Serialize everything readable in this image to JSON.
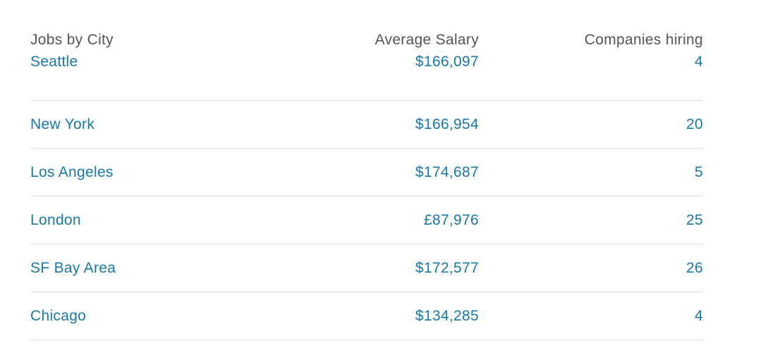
{
  "table": {
    "headers": {
      "city": "Jobs by City",
      "salary": "Average Salary",
      "companies": "Companies hiring"
    },
    "rows": [
      {
        "city": "Seattle",
        "salary": "$166,097",
        "companies": "4"
      },
      {
        "city": "New York",
        "salary": "$166,954",
        "companies": "20"
      },
      {
        "city": "Los Angeles",
        "salary": "$174,687",
        "companies": "5"
      },
      {
        "city": "London",
        "salary": "£87,976",
        "companies": "25"
      },
      {
        "city": "SF Bay Area",
        "salary": "$172,577",
        "companies": "26"
      },
      {
        "city": "Chicago",
        "salary": "$134,285",
        "companies": "4"
      }
    ]
  },
  "colors": {
    "link": "#1778ab",
    "header_text": "#555555",
    "divider": "#dddddd"
  }
}
